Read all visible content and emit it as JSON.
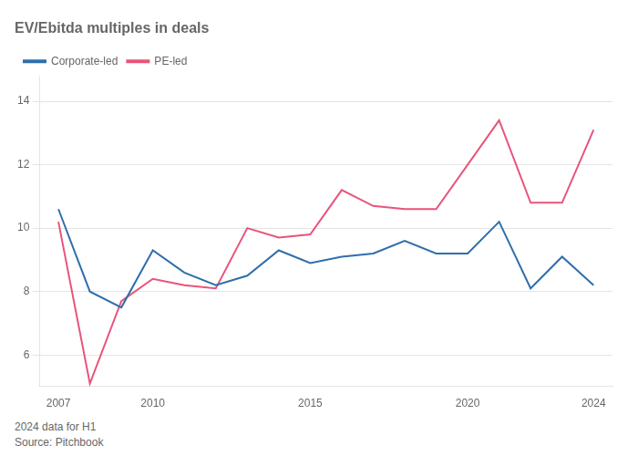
{
  "chart_data": {
    "type": "line",
    "title": "EV/Ebitda multiples in deals",
    "annotations": [
      "2024 data for H1",
      "Source: Pitchbook"
    ],
    "x": [
      2007,
      2008,
      2009,
      2010,
      2011,
      2012,
      2013,
      2014,
      2015,
      2016,
      2017,
      2018,
      2019,
      2020,
      2021,
      2022,
      2023,
      2024
    ],
    "series": [
      {
        "name": "Corporate-led",
        "color": "#2e6fac",
        "values": [
          10.6,
          8.0,
          7.5,
          9.3,
          8.6,
          8.2,
          8.5,
          9.3,
          8.9,
          9.1,
          9.2,
          9.6,
          9.2,
          9.2,
          10.2,
          8.1,
          9.1,
          8.2
        ]
      },
      {
        "name": "PE-led",
        "color": "#e8547a",
        "values": [
          10.2,
          5.1,
          7.7,
          8.4,
          8.2,
          8.1,
          10.0,
          9.7,
          9.8,
          11.2,
          10.7,
          10.6,
          10.6,
          12.0,
          13.4,
          10.8,
          10.8,
          13.1
        ]
      }
    ],
    "xlim": [
      2006.4,
      2024.6
    ],
    "xticks": [
      2007,
      2010,
      2015,
      2020,
      2024
    ],
    "ylim": [
      5.0,
      14.8
    ],
    "yticks": [
      6,
      8,
      10,
      12,
      14
    ],
    "grid": "y",
    "legend": "top"
  }
}
